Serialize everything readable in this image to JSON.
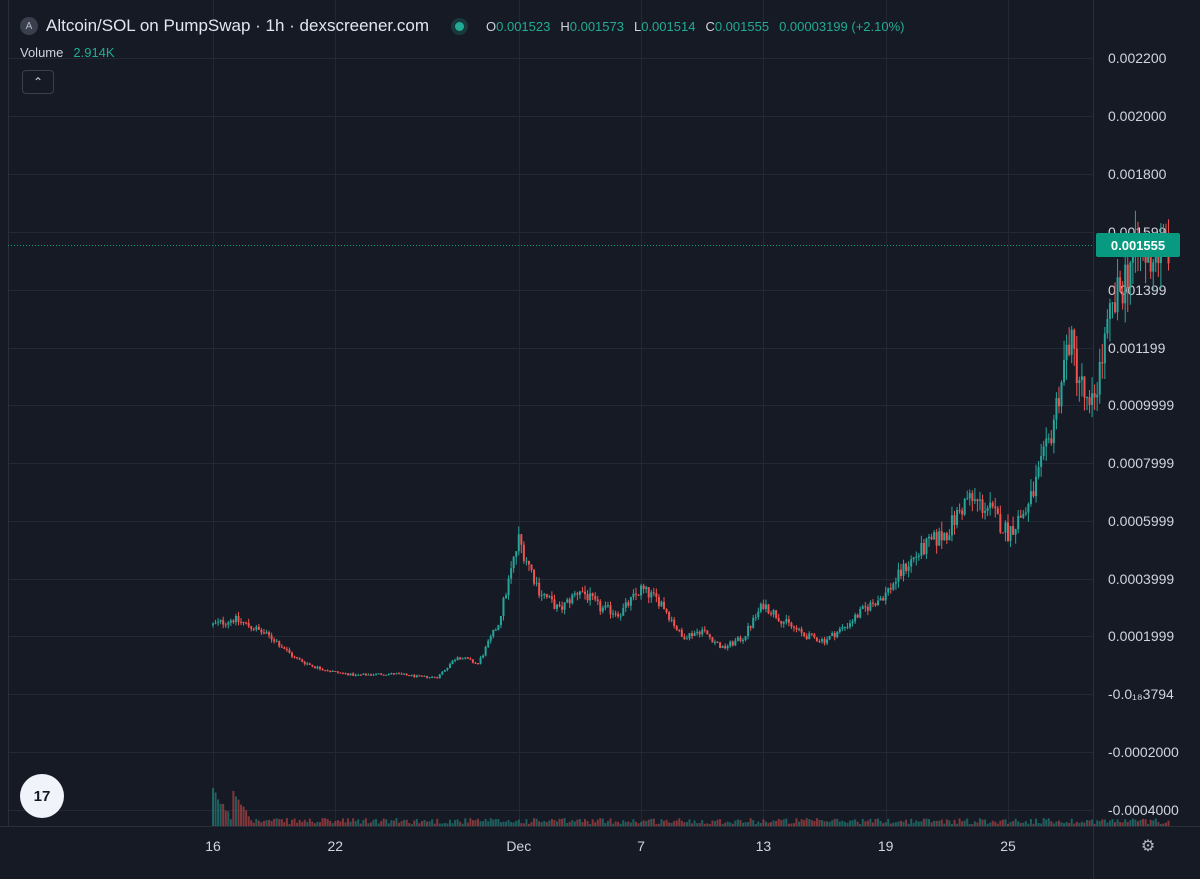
{
  "header": {
    "symbol_icon": "A",
    "title": "Altcoin/SOL on PumpSwap · 1h · dexscreener.com",
    "ohlc": {
      "o_label": "O",
      "o_value": "0.001523",
      "h_label": "H",
      "h_value": "0.001573",
      "l_label": "L",
      "l_value": "0.001514",
      "c_label": "C",
      "c_value": "0.001555",
      "change": "0.00003199 (+2.10%)"
    }
  },
  "volume": {
    "label": "Volume",
    "value": "2.914K"
  },
  "controls": {
    "collapse_icon": "chevron-up-icon",
    "settings_icon": "gear-icon",
    "logo_text": "17"
  },
  "colors": {
    "up": "#26a69a",
    "down": "#ef5350",
    "background": "#161a25",
    "grid": "#242835",
    "last_price": "#089981"
  },
  "last_price_label": "0.001555",
  "chart_data": {
    "type": "candlestick",
    "interval": "1h",
    "y_ticks": [
      "0.002200",
      "0.002000",
      "0.001800",
      "0.001599",
      "0.001399",
      "0.001199",
      "0.0009999",
      "0.0007999",
      "0.0005999",
      "0.0003999",
      "0.0001999",
      "-0.0₁₈3794",
      "-0.0002000",
      "-0.0004000"
    ],
    "y_tick_values": [
      0.0022,
      0.002,
      0.0018,
      0.001599,
      0.001399,
      0.001199,
      0.0009999,
      0.0007999,
      0.0005999,
      0.0003999,
      0.0001999,
      0.0,
      -0.0002,
      -0.0004
    ],
    "x_ticks": [
      "16",
      "22",
      "Dec",
      "7",
      "13",
      "19",
      "25"
    ],
    "x_tick_days": [
      0,
      6,
      15,
      21,
      27,
      33,
      39
    ],
    "last_price": 0.001555,
    "close_series_start_day": 0,
    "close_series_step_days": 1,
    "close_series": [
      0.00024,
      0.00026,
      0.00023,
      0.00019,
      0.000126,
      9.45e-05,
      7.65e-05,
      6.57e-05,
      6.99e-05,
      7.05e-05,
      6.15e-05,
      5.88e-05,
      0.000132,
      0.000105,
      0.000246,
      0.000534,
      0.00036,
      0.000291,
      0.000363,
      0.000297,
      0.000282,
      0.000363,
      0.000318,
      0.000198,
      0.000222,
      0.000159,
      0.000195,
      0.000312,
      0.000252,
      0.000204,
      0.000186,
      0.000234,
      0.000297,
      0.000348,
      0.000444,
      0.000513,
      0.000561,
      0.000675,
      0.000645,
      0.000561,
      0.000648,
      0.000864,
      0.00123,
      0.00096,
      0.00129,
      0.0015,
      0.00152,
      0.001555
    ],
    "volume_note": "per-bar volume shown as small bars along the bottom axis"
  }
}
